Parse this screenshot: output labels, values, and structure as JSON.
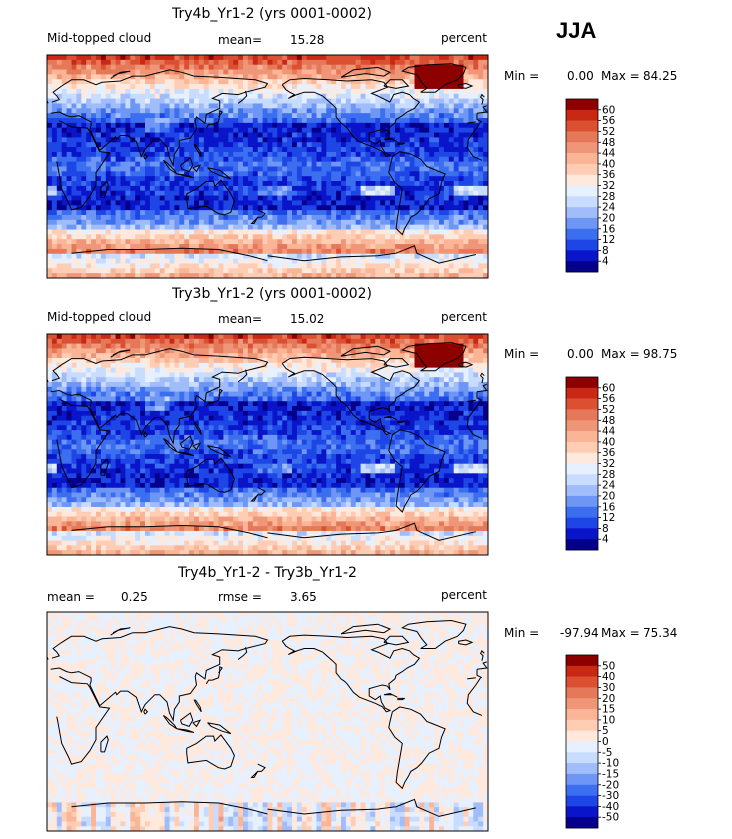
{
  "header": {
    "season": "JJA"
  },
  "palettes": {
    "field": [
      "#05008c",
      "#0a14c8",
      "#1e46e6",
      "#3c6ef0",
      "#6e96f5",
      "#a0bcfa",
      "#c8dcff",
      "#e6f0ff",
      "#ffe8dc",
      "#ffcdb4",
      "#fab496",
      "#f09678",
      "#e6785a",
      "#dc5032",
      "#c82814",
      "#8c0000"
    ],
    "diff": [
      "#05008c",
      "#0a14c8",
      "#1e46e6",
      "#3c6ef0",
      "#6e96f5",
      "#a0bcfa",
      "#c8dcff",
      "#e6f0ff",
      "#ffe8dc",
      "#ffcdb4",
      "#fab496",
      "#f09678",
      "#e6785a",
      "#dc5032",
      "#c82814",
      "#8c0000"
    ]
  },
  "chart_data": [
    {
      "type": "heatmap",
      "title": "Try4b_Yr1-2 (yrs 0001-0002)",
      "variable": "Mid-topped cloud",
      "mean_label": "mean=",
      "mean": "15.28",
      "units": "percent",
      "min_label": "Min =",
      "min": "0.00",
      "max_label": "Max =",
      "max": "84.25",
      "colorbar_levels": [
        "60",
        "56",
        "52",
        "48",
        "44",
        "40",
        "36",
        "32",
        "28",
        "24",
        "20",
        "16",
        "12",
        "8",
        "4"
      ],
      "mean_value": 15.28,
      "min_value": 0.0,
      "max_value": 84.25
    },
    {
      "type": "heatmap",
      "title": "Try3b_Yr1-2 (yrs 0001-0002)",
      "variable": "Mid-topped cloud",
      "mean_label": "mean=",
      "mean": "15.02",
      "units": "percent",
      "min_label": "Min =",
      "min": "0.00",
      "max_label": "Max =",
      "max": "98.75",
      "colorbar_levels": [
        "60",
        "56",
        "52",
        "48",
        "44",
        "40",
        "36",
        "32",
        "28",
        "24",
        "20",
        "16",
        "12",
        "8",
        "4"
      ],
      "mean_value": 15.02,
      "min_value": 0.0,
      "max_value": 98.75
    },
    {
      "type": "heatmap",
      "title": "Try4b_Yr1-2 - Try3b_Yr1-2",
      "mean_label": "mean =",
      "mean": "0.25",
      "rmse_label": "rmse =",
      "rmse": "3.65",
      "units": "percent",
      "min_label": "Min =",
      "min": "-97.94",
      "max_label": "Max =",
      "max": "75.34",
      "colorbar_levels": [
        "50",
        "40",
        "30",
        "20",
        "15",
        "10",
        "5",
        "0",
        "-5",
        "-10",
        "-15",
        "-20",
        "-30",
        "-40",
        "-50"
      ],
      "mean_value": 0.25,
      "rmse_value": 3.65,
      "min_value": -97.94,
      "max_value": 75.34
    }
  ]
}
